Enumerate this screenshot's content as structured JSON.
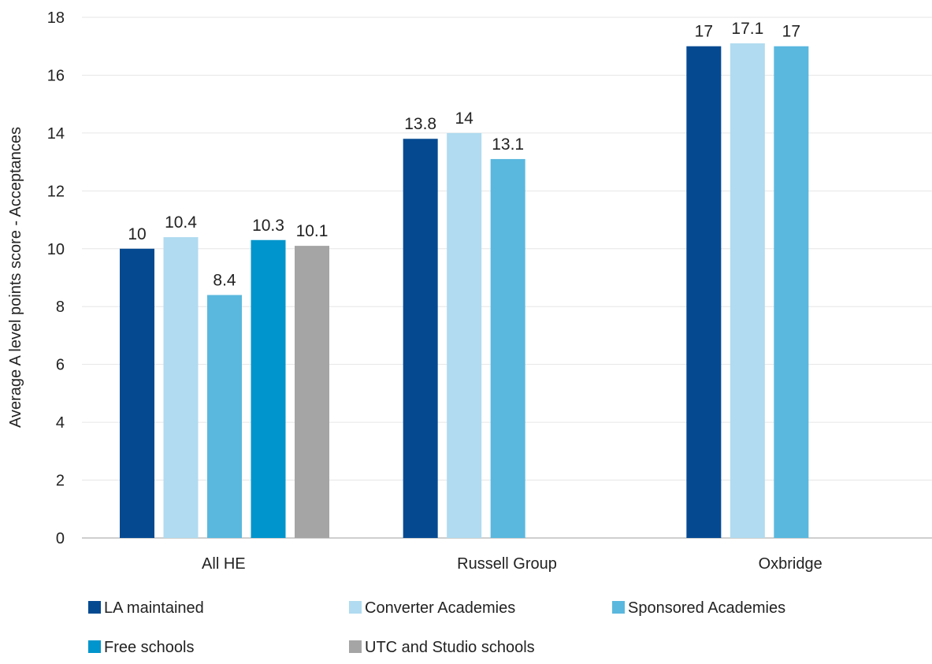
{
  "chart_data": {
    "type": "bar",
    "title": "",
    "xlabel": "",
    "ylabel": "Average A level points score - Acceptances",
    "ylim": [
      0,
      18
    ],
    "yticks": [
      0,
      2,
      4,
      6,
      8,
      10,
      12,
      14,
      16,
      18
    ],
    "grid": true,
    "legend_position": "bottom",
    "categories": [
      "All HE",
      "Russell Group",
      "Oxbridge"
    ],
    "series": [
      {
        "name": "LA maintained",
        "color": "#054a91",
        "values": [
          10,
          13.8,
          17
        ],
        "labels": [
          "10",
          "13.8",
          "17"
        ]
      },
      {
        "name": "Converter Academies",
        "color": "#b0dbf0",
        "values": [
          10.4,
          14,
          17.1
        ],
        "labels": [
          "10.4",
          "14",
          "17.1"
        ]
      },
      {
        "name": "Sponsored Academies",
        "color": "#5ab8de",
        "values": [
          8.4,
          13.1,
          17
        ],
        "labels": [
          "8.4",
          "13.1",
          "17"
        ]
      },
      {
        "name": "Free schools",
        "color": "#0095cc",
        "values": [
          10.3,
          null,
          null
        ],
        "labels": [
          "10.3",
          "",
          ""
        ]
      },
      {
        "name": "UTC and Studio schools",
        "color": "#a5a5a5",
        "values": [
          10.1,
          null,
          null
        ],
        "labels": [
          "10.1",
          "",
          ""
        ]
      }
    ]
  }
}
